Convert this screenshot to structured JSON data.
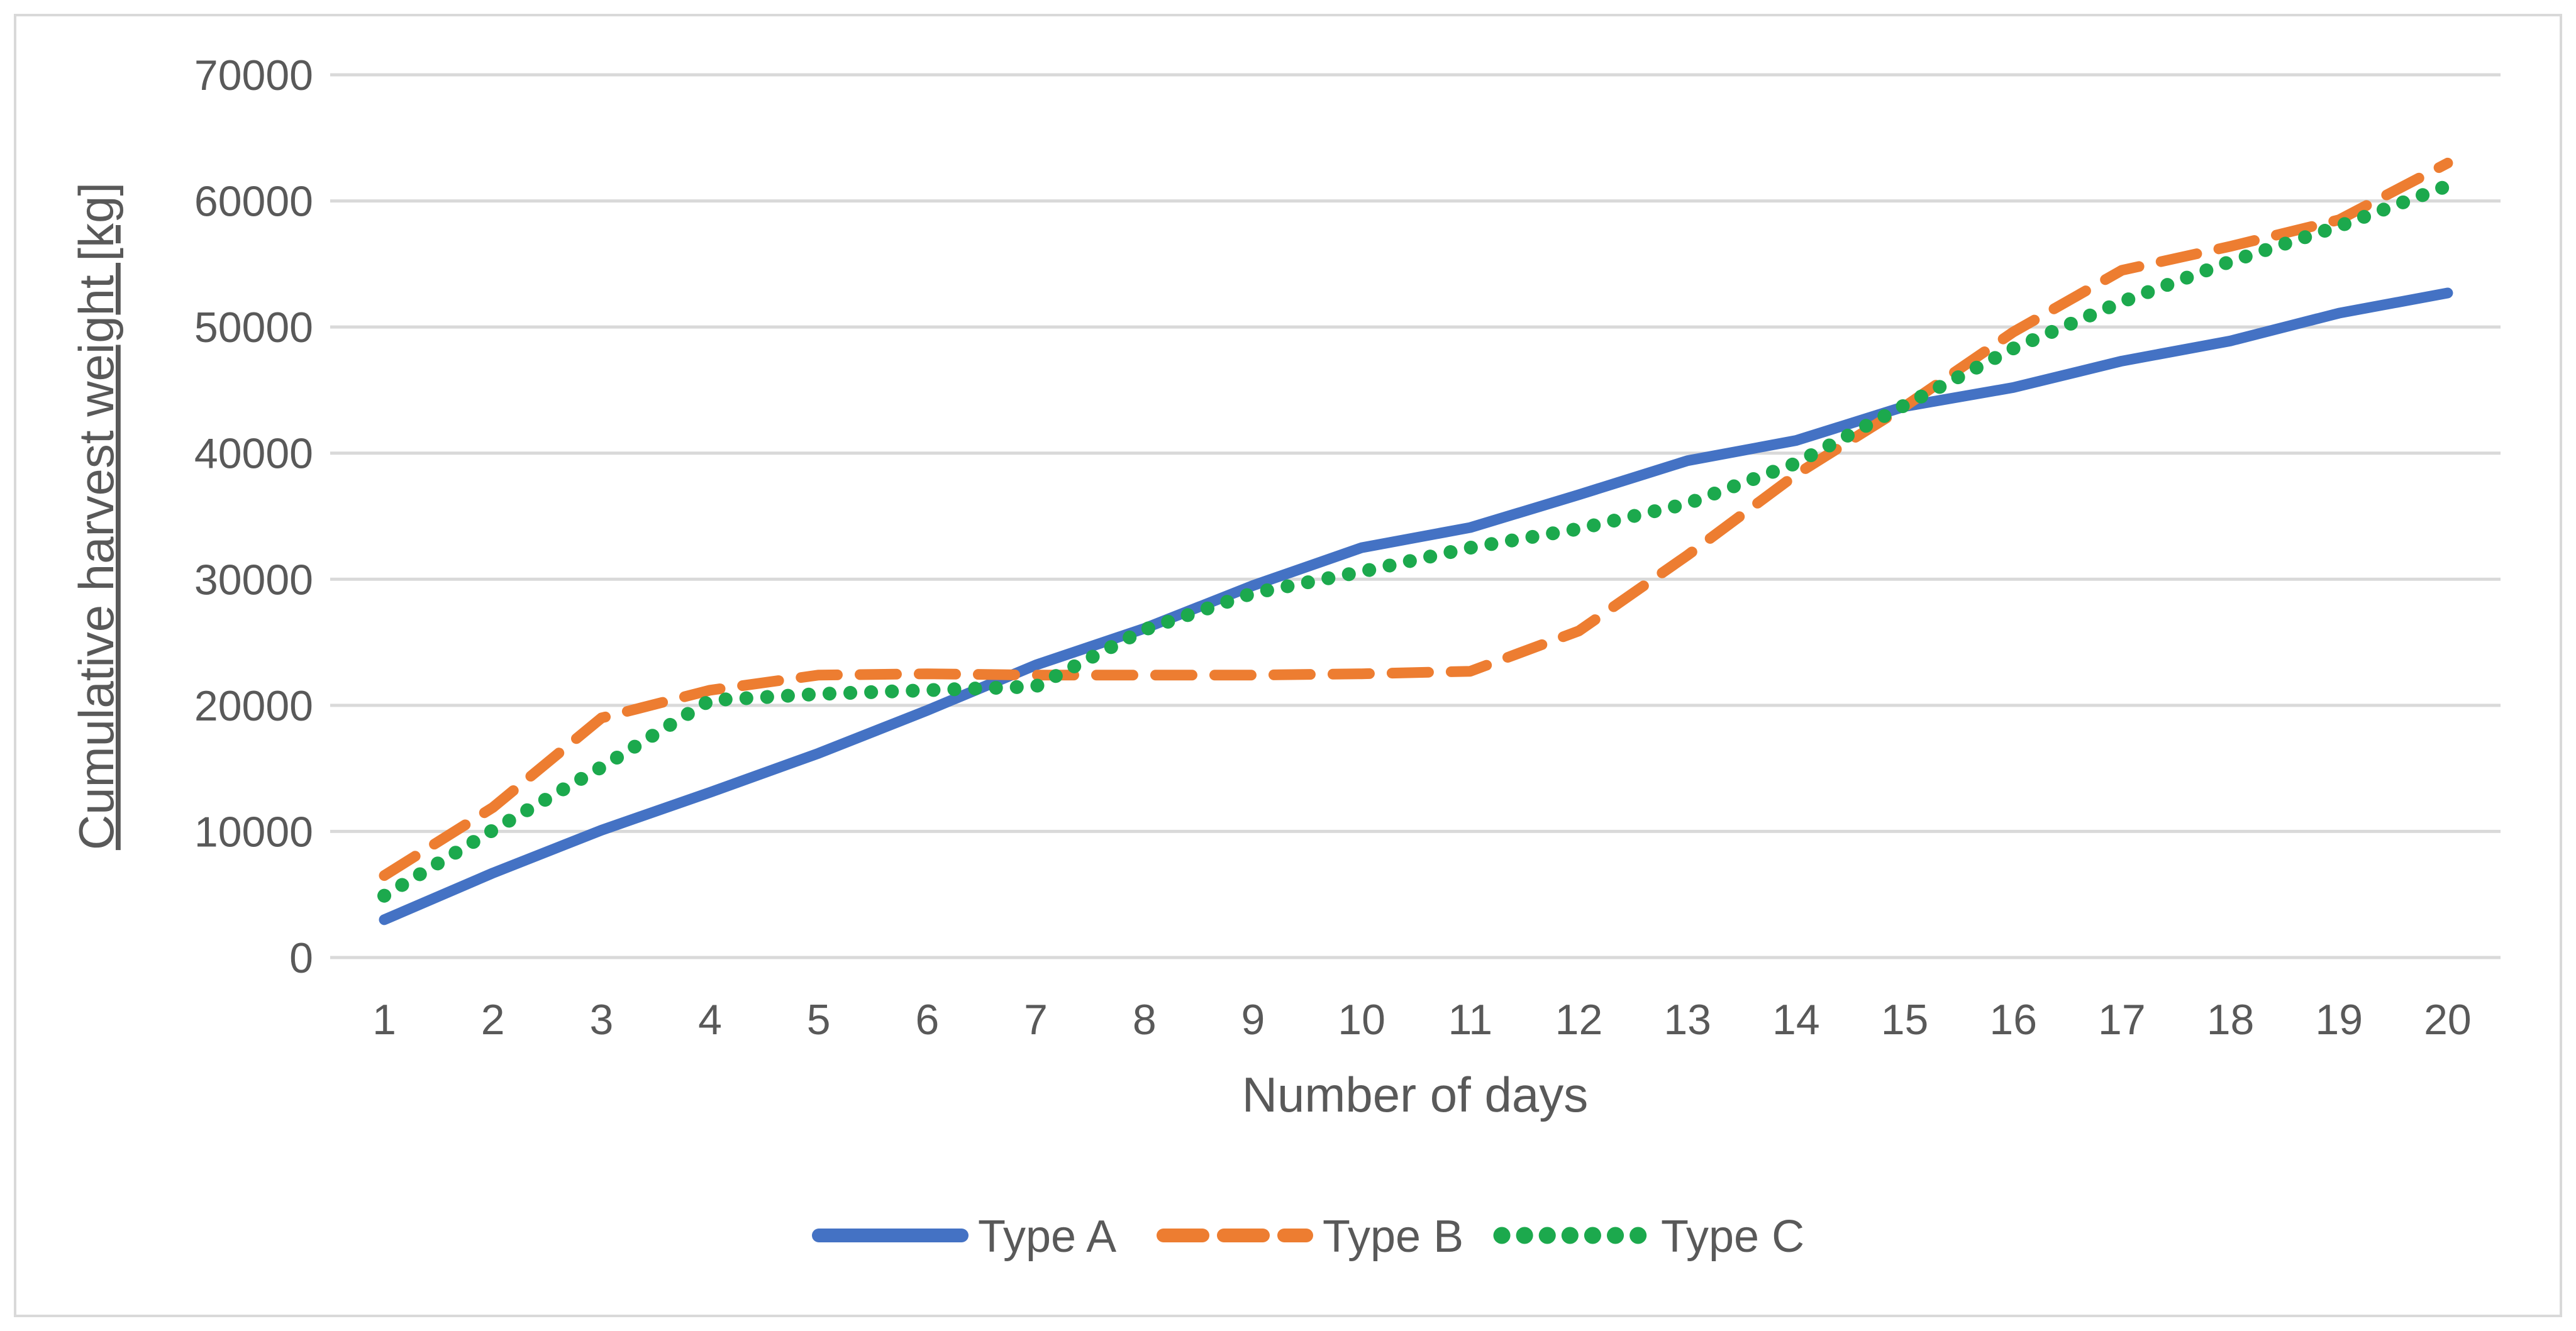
{
  "chart_data": {
    "type": "line",
    "title": "",
    "xlabel": "Number of days",
    "ylabel": "Cumulative harvest weight [kg]",
    "ylim": [
      0,
      70000
    ],
    "ytick_step": 10000,
    "ytick_labels": [
      "0",
      "10000",
      "20000",
      "30000",
      "40000",
      "50000",
      "60000",
      "70000"
    ],
    "x": [
      1,
      2,
      3,
      4,
      5,
      6,
      7,
      8,
      9,
      10,
      11,
      12,
      13,
      14,
      15,
      16,
      17,
      18,
      19,
      20
    ],
    "xtick_labels": [
      "1",
      "2",
      "3",
      "4",
      "5",
      "6",
      "7",
      "8",
      "9",
      "10",
      "11",
      "12",
      "13",
      "14",
      "15",
      "16",
      "17",
      "18",
      "19",
      "20"
    ],
    "grid": "horizontal",
    "legend_position": "bottom-center",
    "series": [
      {
        "name": "Type A",
        "style": "solid",
        "color": "#4472C4",
        "values": [
          3000,
          6700,
          10100,
          13100,
          16200,
          19600,
          23200,
          26100,
          29500,
          32500,
          34100,
          36700,
          39400,
          41000,
          43700,
          45200,
          47300,
          48900,
          51100,
          52700
        ]
      },
      {
        "name": "Type B",
        "style": "dashed",
        "color": "#ED7D31",
        "values": [
          6500,
          11900,
          19000,
          21200,
          22400,
          22500,
          22400,
          22400,
          22400,
          22500,
          22700,
          25900,
          31900,
          38300,
          43700,
          49600,
          54500,
          56400,
          58500,
          63000
        ]
      },
      {
        "name": "Type C",
        "style": "dotted",
        "color": "#1CA94D",
        "values": [
          4900,
          10100,
          15100,
          20400,
          20900,
          21200,
          21500,
          26000,
          28900,
          30600,
          32500,
          34000,
          36000,
          39200,
          43800,
          48300,
          52000,
          55200,
          58000,
          61200
        ]
      }
    ],
    "colors": {
      "gridline": "#D9D9D9",
      "border": "#D9D9D9",
      "text": "#595959"
    }
  }
}
